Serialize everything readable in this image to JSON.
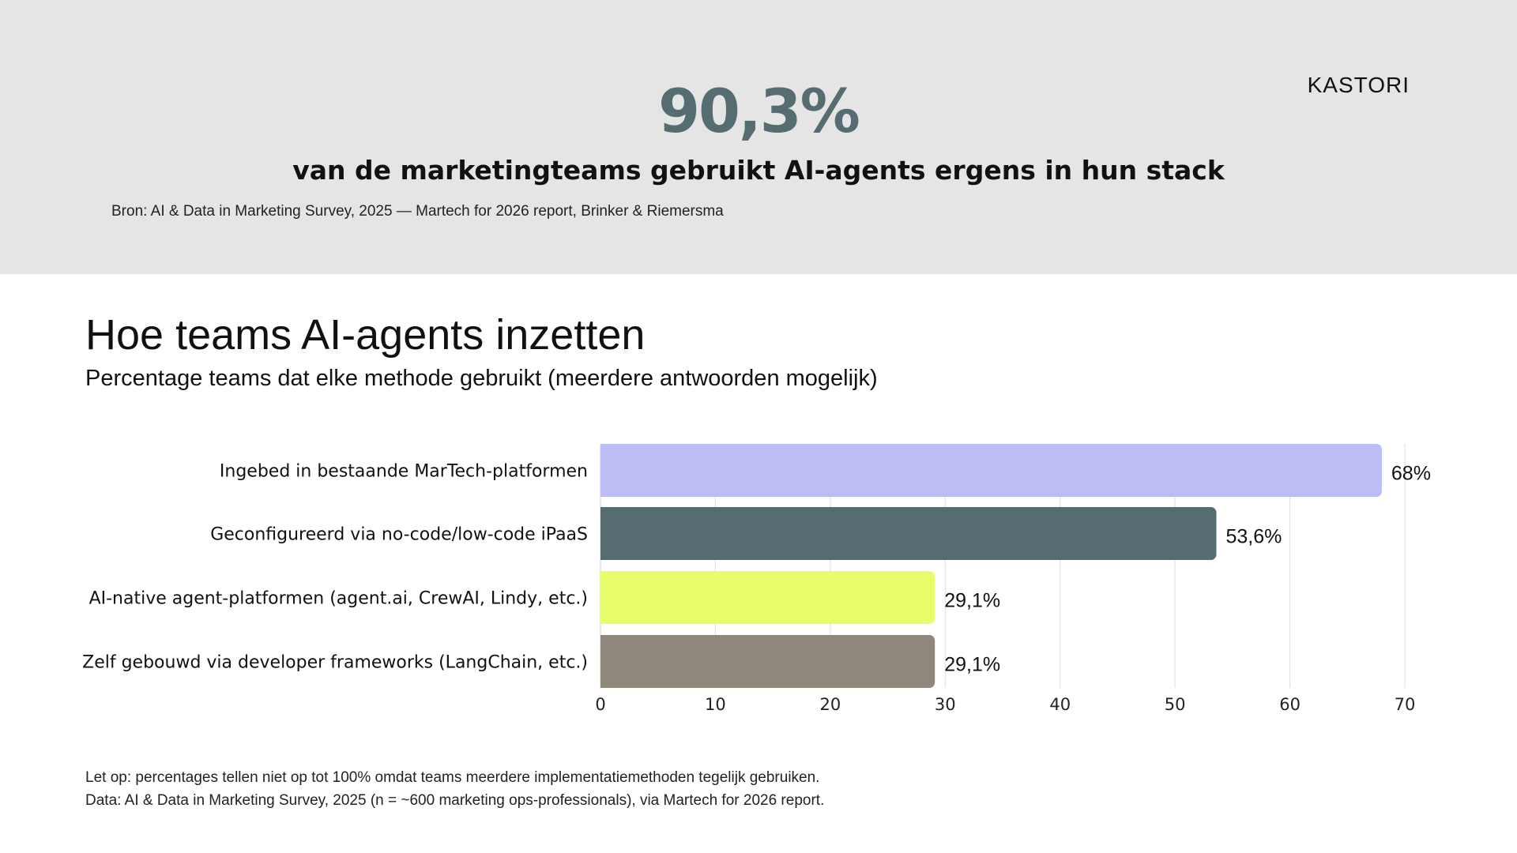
{
  "hero": {
    "stat": "90,3%",
    "subtitle": "van de marketingteams gebruikt AI-agents ergens in hun stack",
    "source": "Bron: AI & Data in Marketing Survey, 2025 — Martech for 2026 report, Brinker & Riemersma"
  },
  "logo": {
    "text": "KASTORI"
  },
  "notes": {
    "line1": "Let op: percentages tellen niet op tot 100% omdat teams meerdere implementatiemethoden tegelijk gebruiken.",
    "line2": "Data: AI & Data in Marketing Survey, 2025 (n = ~600 marketing ops-professionals), via Martech for 2026 report."
  },
  "chart_data": {
    "type": "bar",
    "orientation": "horizontal",
    "title": "Hoe teams AI-agents inzetten",
    "subtitle": "Percentage teams dat elke methode gebruikt (meerdere antwoorden mogelijk)",
    "categories": [
      "Ingebed in bestaande MarTech-platformen",
      "Geconfigureerd via no-code/low-code iPaaS",
      "AI-native agent-platformen (agent.ai, CrewAI, Lindy, etc.)",
      "Zelf gebouwd via developer frameworks (LangChain, etc.)"
    ],
    "values": [
      68,
      53.6,
      29.1,
      29.1
    ],
    "data_labels": [
      "68%",
      "53,6%",
      "29,1%",
      "29,1%"
    ],
    "colors": [
      "#bcbdf4",
      "#556d71",
      "#e9fc6c",
      "#8f867c"
    ],
    "xlim": [
      0,
      70
    ],
    "xticks": [
      "0",
      "10",
      "20",
      "30",
      "40",
      "50",
      "60",
      "70"
    ],
    "grid": true
  }
}
